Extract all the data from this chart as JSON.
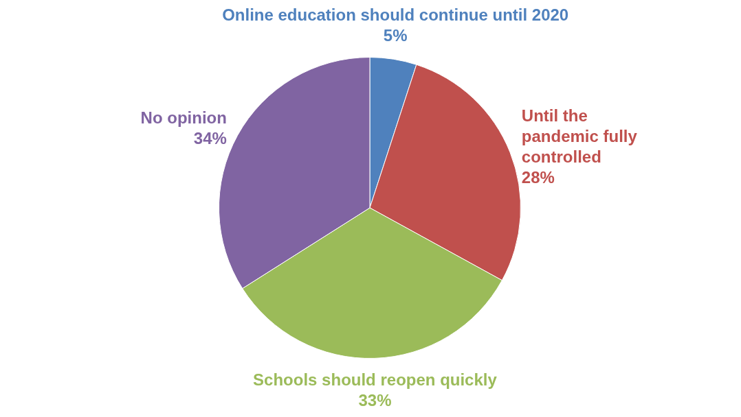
{
  "chart_data": {
    "type": "pie",
    "categories": [
      "Online education should continue until 2020",
      "Until the pandemic fully controlled",
      "Schools should reopen quickly",
      "No opinion"
    ],
    "values": [
      5,
      28,
      33,
      34
    ],
    "value_labels": [
      "5%",
      "28%",
      "33%",
      "34%"
    ],
    "colors": [
      "#4f81bd",
      "#c0504d",
      "#9bbb59",
      "#8064a2"
    ],
    "legend": false
  }
}
